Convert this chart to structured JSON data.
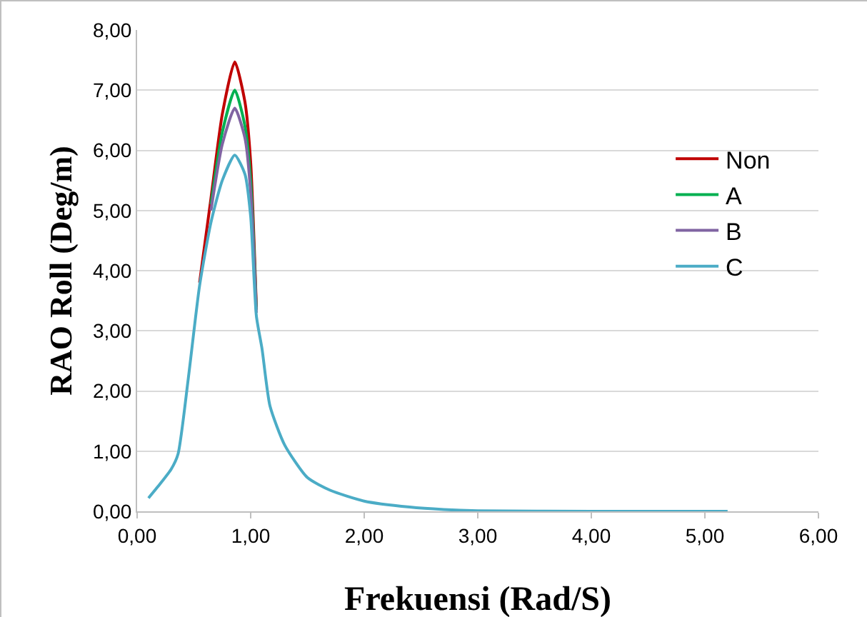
{
  "chart_data": {
    "type": "line",
    "xlabel": "Frekuensi (Rad/S)",
    "ylabel": "RAO Roll (Deg/m)",
    "x": [
      0.1,
      0.2,
      0.3,
      0.36,
      0.45,
      0.55,
      0.65,
      0.75,
      0.86,
      0.95,
      1.0,
      1.05,
      1.1,
      1.17,
      1.3,
      1.5,
      1.7,
      2.0,
      2.4,
      2.7,
      3.0,
      4.0,
      5.2
    ],
    "series": [
      {
        "name": "Non",
        "color": "#c00000",
        "values": [
          null,
          null,
          null,
          null,
          null,
          3.8,
          5.2,
          6.6,
          7.47,
          6.8,
          5.8,
          3.4,
          null,
          null,
          null,
          null,
          null,
          null,
          null,
          null,
          null,
          null,
          null
        ]
      },
      {
        "name": "A",
        "color": "#00b050",
        "values": [
          null,
          null,
          null,
          null,
          null,
          null,
          5.1,
          6.3,
          7.0,
          6.4,
          5.5,
          3.35,
          null,
          null,
          null,
          null,
          null,
          null,
          null,
          null,
          null,
          null,
          null
        ]
      },
      {
        "name": "B",
        "color": "#8064a2",
        "values": [
          null,
          null,
          null,
          null,
          null,
          null,
          5.0,
          6.1,
          6.7,
          6.2,
          5.3,
          3.3,
          null,
          null,
          null,
          null,
          null,
          null,
          null,
          null,
          null,
          null,
          null
        ]
      },
      {
        "name": "C",
        "color": "#4bacc6",
        "values": [
          0.22,
          0.45,
          0.7,
          0.95,
          2.2,
          3.75,
          4.8,
          5.5,
          5.92,
          5.6,
          4.9,
          3.25,
          2.7,
          1.75,
          1.1,
          0.56,
          0.35,
          0.17,
          0.07,
          0.03,
          0.01,
          0,
          0
        ]
      }
    ],
    "xlim": [
      0,
      6
    ],
    "xticks": [
      {
        "value": 0,
        "label": "0,00"
      },
      {
        "value": 1,
        "label": "1,00"
      },
      {
        "value": 2,
        "label": "2,00"
      },
      {
        "value": 3,
        "label": "3,00"
      },
      {
        "value": 4,
        "label": "4,00"
      },
      {
        "value": 5,
        "label": "5,00"
      },
      {
        "value": 6,
        "label": "6,00"
      }
    ],
    "ylim": [
      0,
      8
    ],
    "yticks": [
      {
        "value": 0,
        "label": "0,00"
      },
      {
        "value": 1,
        "label": "1,00"
      },
      {
        "value": 2,
        "label": "2,00"
      },
      {
        "value": 3,
        "label": "3,00"
      },
      {
        "value": 4,
        "label": "4,00"
      },
      {
        "value": 5,
        "label": "5,00"
      },
      {
        "value": 6,
        "label": "6,00"
      },
      {
        "value": 7,
        "label": "7,00"
      },
      {
        "value": 8,
        "label": "8,00"
      }
    ],
    "grid": "y",
    "legend": "right",
    "marker": "none",
    "line_style": "solid"
  }
}
